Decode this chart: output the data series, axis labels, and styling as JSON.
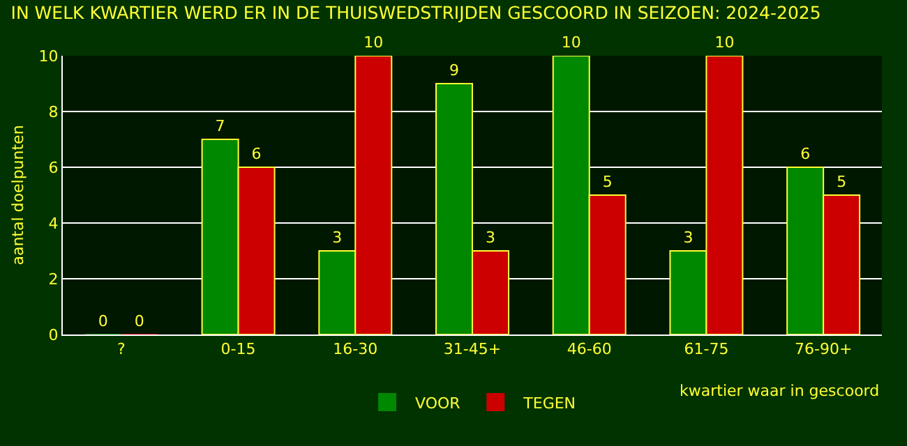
{
  "chart_data": {
    "type": "bar",
    "title": "IN WELK KWARTIER WERD ER IN DE THUISWEDSTRIJDEN GESCOORD IN SEIZOEN: 2024-2025",
    "xlabel": "kwartier waar in gescoord",
    "ylabel": "aantal doelpunten",
    "categories": [
      "?",
      "0-15",
      "16-30",
      "31-45+",
      "46-60",
      "61-75",
      "76-90+"
    ],
    "series": [
      {
        "name": "VOOR",
        "color": "#008800",
        "values": [
          0,
          7,
          3,
          9,
          10,
          3,
          6
        ]
      },
      {
        "name": "TEGEN",
        "color": "#cc0000",
        "values": [
          0,
          6,
          10,
          3,
          5,
          10,
          5
        ]
      }
    ],
    "ylim": [
      0,
      10
    ],
    "yticks": [
      0,
      2,
      4,
      6,
      8,
      10
    ],
    "grid": "y",
    "legend": "bottom",
    "data_labels": true
  }
}
